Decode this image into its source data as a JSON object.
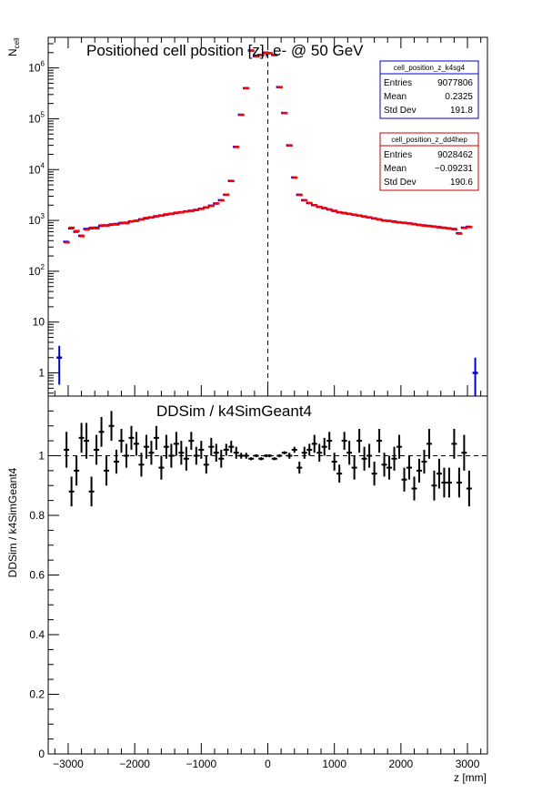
{
  "chart_data": [
    {
      "type": "histogram",
      "title": "Positioned cell position [z],  e- @ 50 GeV",
      "ylabel": "N",
      "ylabel_sub": "cell",
      "xlim": [
        -3300,
        3300
      ],
      "ylim": [
        0.35,
        4000000
      ],
      "log_y": true,
      "y_ticks": [
        {
          "value": 1,
          "label": "1"
        },
        {
          "value": 10,
          "label": "10"
        },
        {
          "value": 100,
          "label": "10",
          "exp": "2"
        },
        {
          "value": 1000,
          "label": "10",
          "exp": "3"
        },
        {
          "value": 10000,
          "label": "10",
          "exp": "4"
        },
        {
          "value": 100000,
          "label": "10",
          "exp": "5"
        },
        {
          "value": 1000000,
          "label": "10",
          "exp": "6"
        }
      ],
      "reference_line_x": 0,
      "series": [
        {
          "name": "cell_position_z_k4sg4",
          "color": "#0000cc",
          "x": [
            -3125,
            -3025,
            -2950,
            -2875,
            -2800,
            -2725,
            -2650,
            -2575,
            -2500,
            -2425,
            -2350,
            -2275,
            -2200,
            -2125,
            -2050,
            -1975,
            -1900,
            -1825,
            -1750,
            -1675,
            -1600,
            -1525,
            -1450,
            -1375,
            -1300,
            -1225,
            -1150,
            -1075,
            -1000,
            -925,
            -850,
            -775,
            -700,
            -625,
            -550,
            -475,
            -400,
            -325,
            -250,
            -175,
            -100,
            -25,
            25,
            100,
            175,
            250,
            325,
            400,
            475,
            550,
            625,
            700,
            775,
            850,
            925,
            1000,
            1075,
            1150,
            1225,
            1300,
            1375,
            1450,
            1525,
            1600,
            1675,
            1750,
            1825,
            1900,
            1975,
            2050,
            2125,
            2200,
            2275,
            2350,
            2425,
            2500,
            2575,
            2650,
            2725,
            2800,
            2875,
            2950,
            3025,
            3125
          ],
          "y": [
            2,
            380,
            700,
            600,
            500,
            680,
            700,
            720,
            780,
            800,
            820,
            850,
            880,
            900,
            950,
            980,
            1050,
            1100,
            1150,
            1200,
            1250,
            1300,
            1350,
            1400,
            1450,
            1500,
            1550,
            1600,
            1700,
            1800,
            1950,
            2150,
            2500,
            3200,
            6000,
            28000,
            120000,
            400000,
            2200000,
            1700000,
            1800000,
            2000000,
            1950000,
            1800000,
            420000,
            130000,
            30000,
            7000,
            3200,
            2500,
            2200,
            2000,
            1850,
            1750,
            1650,
            1550,
            1450,
            1400,
            1350,
            1300,
            1250,
            1200,
            1150,
            1100,
            1050,
            1000,
            980,
            950,
            920,
            900,
            880,
            850,
            820,
            800,
            780,
            760,
            740,
            720,
            700,
            680,
            560,
            720,
            750,
            1
          ]
        },
        {
          "name": "cell_position_z_dd4hep",
          "color": "#ff0000",
          "x": [
            -3125,
            -3025,
            -2950,
            -2875,
            -2800,
            -2725,
            -2650,
            -2575,
            -2500,
            -2425,
            -2350,
            -2275,
            -2200,
            -2125,
            -2050,
            -1975,
            -1900,
            -1825,
            -1750,
            -1675,
            -1600,
            -1525,
            -1450,
            -1375,
            -1300,
            -1225,
            -1150,
            -1075,
            -1000,
            -925,
            -850,
            -775,
            -700,
            -625,
            -550,
            -475,
            -400,
            -325,
            -250,
            -175,
            -100,
            -25,
            25,
            100,
            175,
            250,
            325,
            400,
            475,
            550,
            625,
            700,
            775,
            850,
            925,
            1000,
            1075,
            1150,
            1225,
            1300,
            1375,
            1450,
            1525,
            1600,
            1675,
            1750,
            1825,
            1900,
            1975,
            2050,
            2125,
            2200,
            2275,
            2350,
            2425,
            2500,
            2575,
            2650,
            2725,
            2800,
            2875,
            2950,
            3025,
            3125
          ],
          "y": [
            0,
            370,
            720,
            620,
            490,
            660,
            720,
            700,
            800,
            790,
            840,
            830,
            900,
            880,
            960,
            990,
            1040,
            1120,
            1140,
            1210,
            1240,
            1320,
            1340,
            1420,
            1440,
            1510,
            1540,
            1620,
            1690,
            1810,
            1940,
            2160,
            2480,
            3220,
            5950,
            27800,
            119000,
            398000,
            2190000,
            1690000,
            1790000,
            1990000,
            1940000,
            1790000,
            418000,
            129000,
            29800,
            6950,
            3180,
            2490,
            2190,
            1990,
            1840,
            1740,
            1640,
            1540,
            1440,
            1390,
            1340,
            1290,
            1240,
            1190,
            1140,
            1090,
            1040,
            990,
            970,
            940,
            910,
            890,
            870,
            840,
            810,
            790,
            770,
            750,
            730,
            710,
            690,
            670,
            550,
            710,
            740,
            0
          ]
        }
      ],
      "stats_boxes": [
        {
          "name": "cell_position_z_k4sg4",
          "color": "#0000cc",
          "rows": [
            {
              "label": "Entries",
              "value": "9077806"
            },
            {
              "label": "Mean",
              "value": "0.2325"
            },
            {
              "label": "Std Dev",
              "value": "191.8"
            }
          ]
        },
        {
          "name": "cell_position_z_dd4hep",
          "color": "#cc0000",
          "rows": [
            {
              "label": "Entries",
              "value": "9028462"
            },
            {
              "label": "Mean",
              "value": "−0.09231"
            },
            {
              "label": "Std Dev",
              "value": "190.6"
            }
          ]
        }
      ]
    },
    {
      "type": "ratio",
      "title": "DDSim / k4SimGeant4",
      "xlabel": "z [mm]",
      "ylabel": "DDSim / k4SimGeant4",
      "xlim": [
        -3300,
        3300
      ],
      "ylim": [
        0,
        1.2
      ],
      "reference_line_y": 1,
      "x_ticks": [
        {
          "value": -3000,
          "label": "−3000"
        },
        {
          "value": -2000,
          "label": "−2000"
        },
        {
          "value": -1000,
          "label": "−1000"
        },
        {
          "value": 0,
          "label": "0"
        },
        {
          "value": 1000,
          "label": "1000"
        },
        {
          "value": 2000,
          "label": "2000"
        },
        {
          "value": 3000,
          "label": "3000"
        }
      ],
      "y_ticks": [
        {
          "value": 0,
          "label": "0"
        },
        {
          "value": 0.2,
          "label": "0.2"
        },
        {
          "value": 0.4,
          "label": "0.4"
        },
        {
          "value": 0.6,
          "label": "0.6"
        },
        {
          "value": 0.8,
          "label": "0.8"
        },
        {
          "value": 1,
          "label": "1"
        }
      ],
      "points": {
        "x": [
          -3025,
          -2950,
          -2875,
          -2800,
          -2725,
          -2650,
          -2575,
          -2500,
          -2425,
          -2350,
          -2275,
          -2200,
          -2125,
          -2050,
          -1975,
          -1900,
          -1825,
          -1750,
          -1675,
          -1600,
          -1525,
          -1450,
          -1375,
          -1300,
          -1225,
          -1150,
          -1075,
          -1000,
          -925,
          -850,
          -775,
          -700,
          -625,
          -550,
          -475,
          -400,
          -325,
          -250,
          -175,
          -100,
          -25,
          25,
          100,
          175,
          250,
          325,
          400,
          475,
          550,
          625,
          700,
          775,
          850,
          925,
          1000,
          1075,
          1150,
          1225,
          1300,
          1375,
          1450,
          1525,
          1600,
          1675,
          1750,
          1825,
          1900,
          1975,
          2050,
          2125,
          2200,
          2275,
          2350,
          2425,
          2500,
          2575,
          2650,
          2725,
          2800,
          2875,
          2950,
          3025
        ],
        "y": [
          1.02,
          0.88,
          0.95,
          1.06,
          1.05,
          0.88,
          1.02,
          1.08,
          0.95,
          1.1,
          0.98,
          1.05,
          1.0,
          1.06,
          1.04,
          0.97,
          1.03,
          1.01,
          1.06,
          0.96,
          1.03,
          1.0,
          1.04,
          1.01,
          0.99,
          1.05,
          1.0,
          1.02,
          0.97,
          1.03,
          1.01,
          0.99,
          1.02,
          1.03,
          1.01,
          1.0,
          1.0,
          0.99,
          1.0,
          0.99,
          1.0,
          1.0,
          0.99,
          1.0,
          1.01,
          1.0,
          1.02,
          0.96,
          1.01,
          1.02,
          1.04,
          1.01,
          1.03,
          1.05,
          0.98,
          0.94,
          1.05,
          1.01,
          0.96,
          1.05,
          0.99,
          1.0,
          0.94,
          1.05,
          0.97,
          0.96,
          0.99,
          1.03,
          0.92,
          0.96,
          0.89,
          0.95,
          0.98,
          1.04,
          0.9,
          0.94,
          0.91,
          0.91,
          1.04,
          0.91,
          1.01,
          0.89
        ],
        "err": [
          0.06,
          0.05,
          0.05,
          0.05,
          0.06,
          0.05,
          0.05,
          0.05,
          0.05,
          0.05,
          0.04,
          0.04,
          0.04,
          0.04,
          0.04,
          0.04,
          0.04,
          0.04,
          0.04,
          0.04,
          0.04,
          0.04,
          0.04,
          0.04,
          0.04,
          0.03,
          0.03,
          0.03,
          0.03,
          0.03,
          0.03,
          0.03,
          0.02,
          0.02,
          0.02,
          0.01,
          0.01,
          0.005,
          0.005,
          0.005,
          0.005,
          0.005,
          0.005,
          0.005,
          0.005,
          0.01,
          0.01,
          0.02,
          0.02,
          0.02,
          0.03,
          0.03,
          0.03,
          0.03,
          0.03,
          0.03,
          0.03,
          0.04,
          0.04,
          0.04,
          0.04,
          0.04,
          0.04,
          0.04,
          0.04,
          0.04,
          0.04,
          0.04,
          0.04,
          0.04,
          0.04,
          0.04,
          0.04,
          0.05,
          0.05,
          0.05,
          0.05,
          0.05,
          0.05,
          0.05,
          0.06,
          0.06
        ]
      }
    }
  ]
}
